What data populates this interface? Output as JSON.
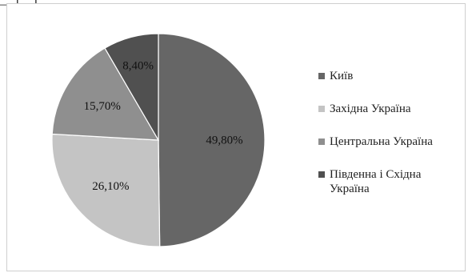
{
  "top_fragment": "— […]",
  "chart_data": {
    "type": "pie",
    "categories": [
      "Київ",
      "Західна Україна",
      "Центральна Україна",
      "Південна і Східна Україна"
    ],
    "values": [
      49.8,
      26.1,
      15.7,
      8.4
    ],
    "value_labels": [
      "49,80%",
      "26,10%",
      "15,70%",
      "8,40%"
    ],
    "colors": [
      "#666666",
      "#c4c4c4",
      "#8f8f8f",
      "#505050"
    ],
    "start": "12 o'clock",
    "direction": "clockwise",
    "legend_position": "right",
    "title": ""
  },
  "legend": [
    {
      "label": "Київ",
      "color": "#666666"
    },
    {
      "label": "Західна Україна",
      "color": "#c4c4c4"
    },
    {
      "label": "Центральна Україна",
      "color": "#8f8f8f"
    },
    {
      "label": "Південна і Східна Україна",
      "color": "#505050"
    }
  ]
}
